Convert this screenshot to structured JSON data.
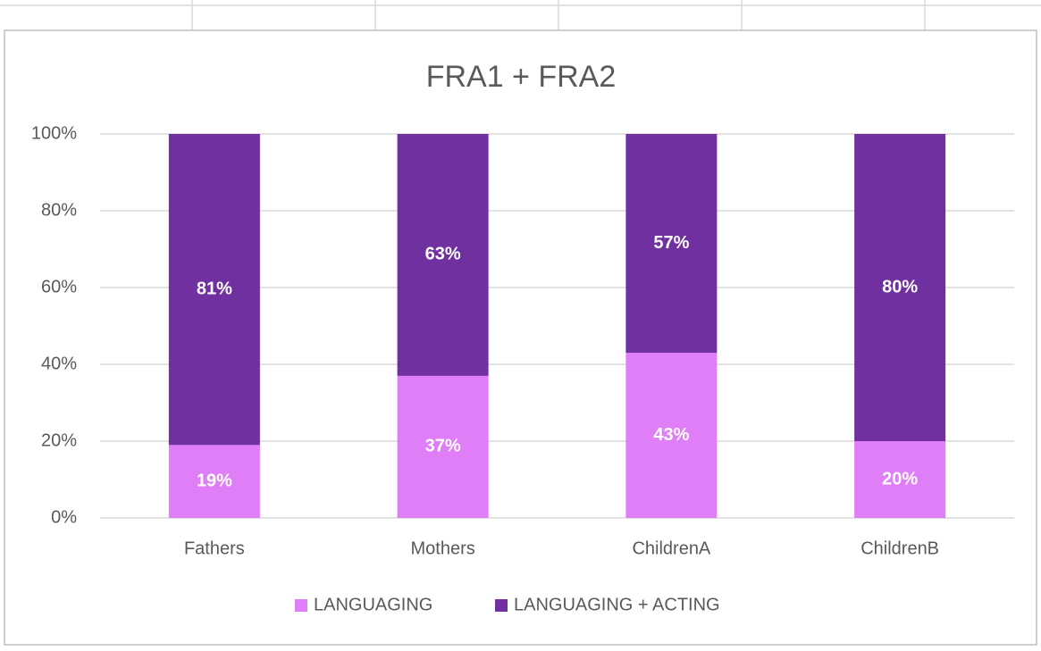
{
  "chart_data": {
    "type": "stacked_bar",
    "title": "FRA1 + FRA2",
    "categories": [
      "Fathers",
      "Mothers",
      "ChildrenA",
      "ChildrenB"
    ],
    "series": [
      {
        "name": "LANGUAGING",
        "color": "#df7ef6",
        "values": [
          19,
          37,
          43,
          20
        ],
        "value_labels": [
          "19%",
          "37%",
          "43%",
          "20%"
        ]
      },
      {
        "name": "LANGUAGING + ACTING",
        "color": "#7030a0",
        "values": [
          81,
          63,
          57,
          80
        ],
        "value_labels": [
          "81%",
          "63%",
          "57%",
          "80%"
        ]
      }
    ],
    "ylim": [
      0,
      100
    ],
    "yticks": [
      {
        "value": 0,
        "label": "0%"
      },
      {
        "value": 20,
        "label": "20%"
      },
      {
        "value": 40,
        "label": "40%"
      },
      {
        "value": 60,
        "label": "60%"
      },
      {
        "value": 80,
        "label": "80%"
      },
      {
        "value": 100,
        "label": "100%"
      }
    ],
    "grid": true,
    "legend": "bottom"
  }
}
